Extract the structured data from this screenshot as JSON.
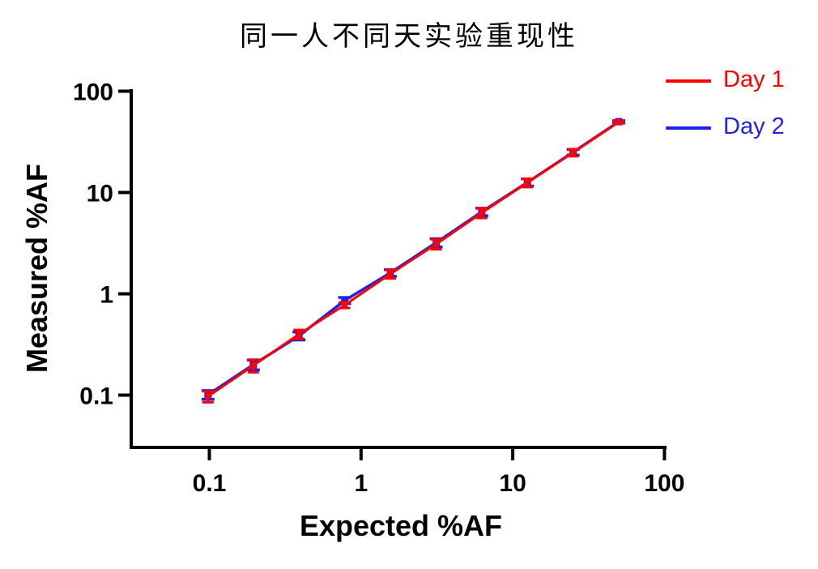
{
  "page": {
    "background": "#ffffff",
    "text_color": "#000000"
  },
  "chart_data": {
    "type": "line",
    "title": "同一人不同天实验重现性",
    "xlabel": "Expected %AF",
    "ylabel": "Measured %AF",
    "x_scale": "log",
    "y_scale": "log",
    "xlim": [
      0.03,
      100
    ],
    "ylim": [
      0.03,
      105
    ],
    "x_ticks": [
      0.1,
      1,
      10,
      100
    ],
    "x_tick_labels": [
      "0.1",
      "1",
      "10",
      "100"
    ],
    "y_ticks": [
      0.1,
      1,
      10,
      100
    ],
    "y_tick_labels": [
      "0.1",
      "1",
      "10",
      "100"
    ],
    "grid": false,
    "legend_position": "outside-top-right",
    "axis_color": "#000000",
    "x": [
      0.098,
      0.195,
      0.39,
      0.78,
      1.56,
      3.13,
      6.25,
      12.5,
      25,
      50
    ],
    "series": [
      {
        "name": "Day 1",
        "color": "#FF0000",
        "marker": "square",
        "values": [
          0.097,
          0.196,
          0.4,
          0.775,
          1.57,
          3.1,
          6.3,
          12.5,
          24.8,
          49.5
        ],
        "errors": [
          0.012,
          0.028,
          0.04,
          0.05,
          0.15,
          0.35,
          0.7,
          1.2,
          2.0,
          1.5
        ]
      },
      {
        "name": "Day 2",
        "color": "#2222E6",
        "marker": "square",
        "values": [
          0.101,
          0.2,
          0.385,
          0.86,
          1.61,
          3.2,
          6.45,
          12.6,
          25.0,
          50.0
        ],
        "errors": [
          0.01,
          0.022,
          0.035,
          0.06,
          0.12,
          0.3,
          0.55,
          1.0,
          1.6,
          1.2
        ]
      }
    ]
  }
}
